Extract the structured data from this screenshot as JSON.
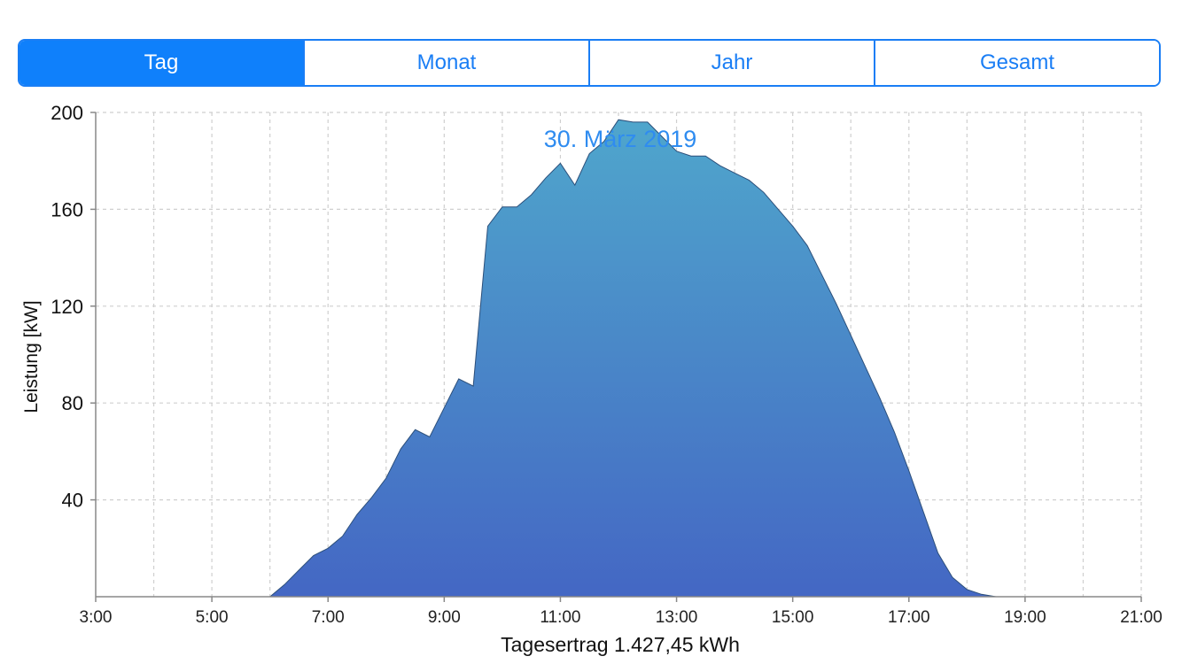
{
  "tabs": [
    {
      "label": "Tag",
      "active": true
    },
    {
      "label": "Monat",
      "active": false
    },
    {
      "label": "Jahr",
      "active": false
    },
    {
      "label": "Gesamt",
      "active": false
    }
  ],
  "colors": {
    "accent": "#0f80fb",
    "fill_top": "#4fa6cc",
    "fill_bottom": "#4467c4"
  },
  "chart_data": {
    "type": "area",
    "title": "30. März 2019",
    "xlabel": "Tagesertrag 1.427,45 kWh",
    "ylabel": "Leistung [kW]",
    "xlim": [
      "3:00",
      "21:00"
    ],
    "ylim": [
      0,
      200
    ],
    "x_ticks": [
      "3:00",
      "5:00",
      "7:00",
      "9:00",
      "11:00",
      "13:00",
      "15:00",
      "17:00",
      "19:00",
      "21:00"
    ],
    "y_ticks": [
      200,
      160,
      120,
      80,
      40
    ],
    "grid": true,
    "series": [
      {
        "x_hours": [
          6.0,
          6.25,
          6.5,
          6.75,
          7.0,
          7.25,
          7.5,
          7.75,
          8.0,
          8.25,
          8.5,
          8.75,
          9.0,
          9.25,
          9.5,
          9.75,
          10.0,
          10.25,
          10.5,
          10.75,
          11.0,
          11.25,
          11.5,
          11.75,
          12.0,
          12.25,
          12.5,
          12.75,
          13.0,
          13.25,
          13.5,
          13.75,
          14.0,
          14.25,
          14.5,
          14.75,
          15.0,
          15.25,
          15.5,
          15.75,
          16.0,
          16.25,
          16.5,
          16.75,
          17.0,
          17.25,
          17.5,
          17.75,
          18.0,
          18.25,
          18.5,
          18.75
        ],
        "values": [
          0,
          5,
          11,
          17,
          20,
          25,
          34,
          41,
          49,
          61,
          69,
          66,
          78,
          90,
          87,
          153,
          161,
          161,
          166,
          173,
          179,
          170,
          183,
          188,
          197,
          196,
          196,
          190,
          184,
          182,
          182,
          178,
          175,
          172,
          167,
          160,
          153,
          145,
          133,
          121,
          108,
          95,
          82,
          68,
          52,
          35,
          18,
          8,
          3,
          1,
          0,
          0
        ]
      }
    ]
  }
}
